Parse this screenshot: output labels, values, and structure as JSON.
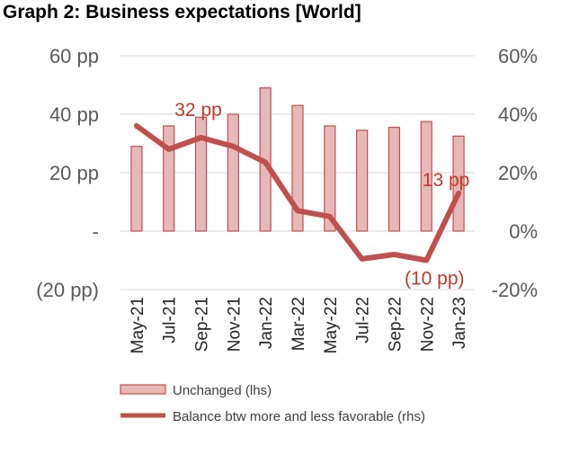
{
  "chart_data": {
    "type": "bar",
    "title": "Graph 2: Business expectations [World]",
    "categories": [
      "May-21",
      "Jul-21",
      "Sep-21",
      "Nov-21",
      "Jan-22",
      "Mar-22",
      "May-22",
      "Jul-22",
      "Sep-22",
      "Nov-22",
      "Jan-23"
    ],
    "series": [
      {
        "name": "Unchanged (lhs)",
        "type": "bar",
        "axis": "left",
        "values": [
          29,
          36,
          39,
          40,
          49,
          43,
          36,
          34.5,
          35.5,
          37.5,
          32.5
        ]
      },
      {
        "name": "Balance btw more and less favorable (rhs)",
        "type": "line",
        "axis": "right",
        "values": [
          36,
          28,
          32,
          29,
          23.5,
          7,
          5,
          -9.5,
          -8,
          -10,
          13
        ]
      }
    ],
    "left_axis": {
      "ticks": [
        "60 pp",
        "40 pp",
        "20 pp",
        "-",
        "(20 pp)"
      ],
      "ylim": [
        -20,
        60
      ]
    },
    "right_axis": {
      "ticks": [
        "60%",
        "40%",
        "20%",
        "0%",
        "-20%"
      ],
      "ylim": [
        -20,
        60
      ]
    },
    "annotations": [
      {
        "text": "32 pp",
        "x": "Sep-21",
        "y": 32
      },
      {
        "text": "13 pp",
        "x": "Jan-23",
        "y": 13
      },
      {
        "text": "(10 pp)",
        "x": "Nov-22",
        "y": -10
      }
    ],
    "colors": {
      "bar_fill": "#e6b8b7",
      "bar_stroke": "#c0504d",
      "line": "#c0504d",
      "annotation": "#c0392b"
    },
    "grid": true,
    "legend": "bottom"
  }
}
